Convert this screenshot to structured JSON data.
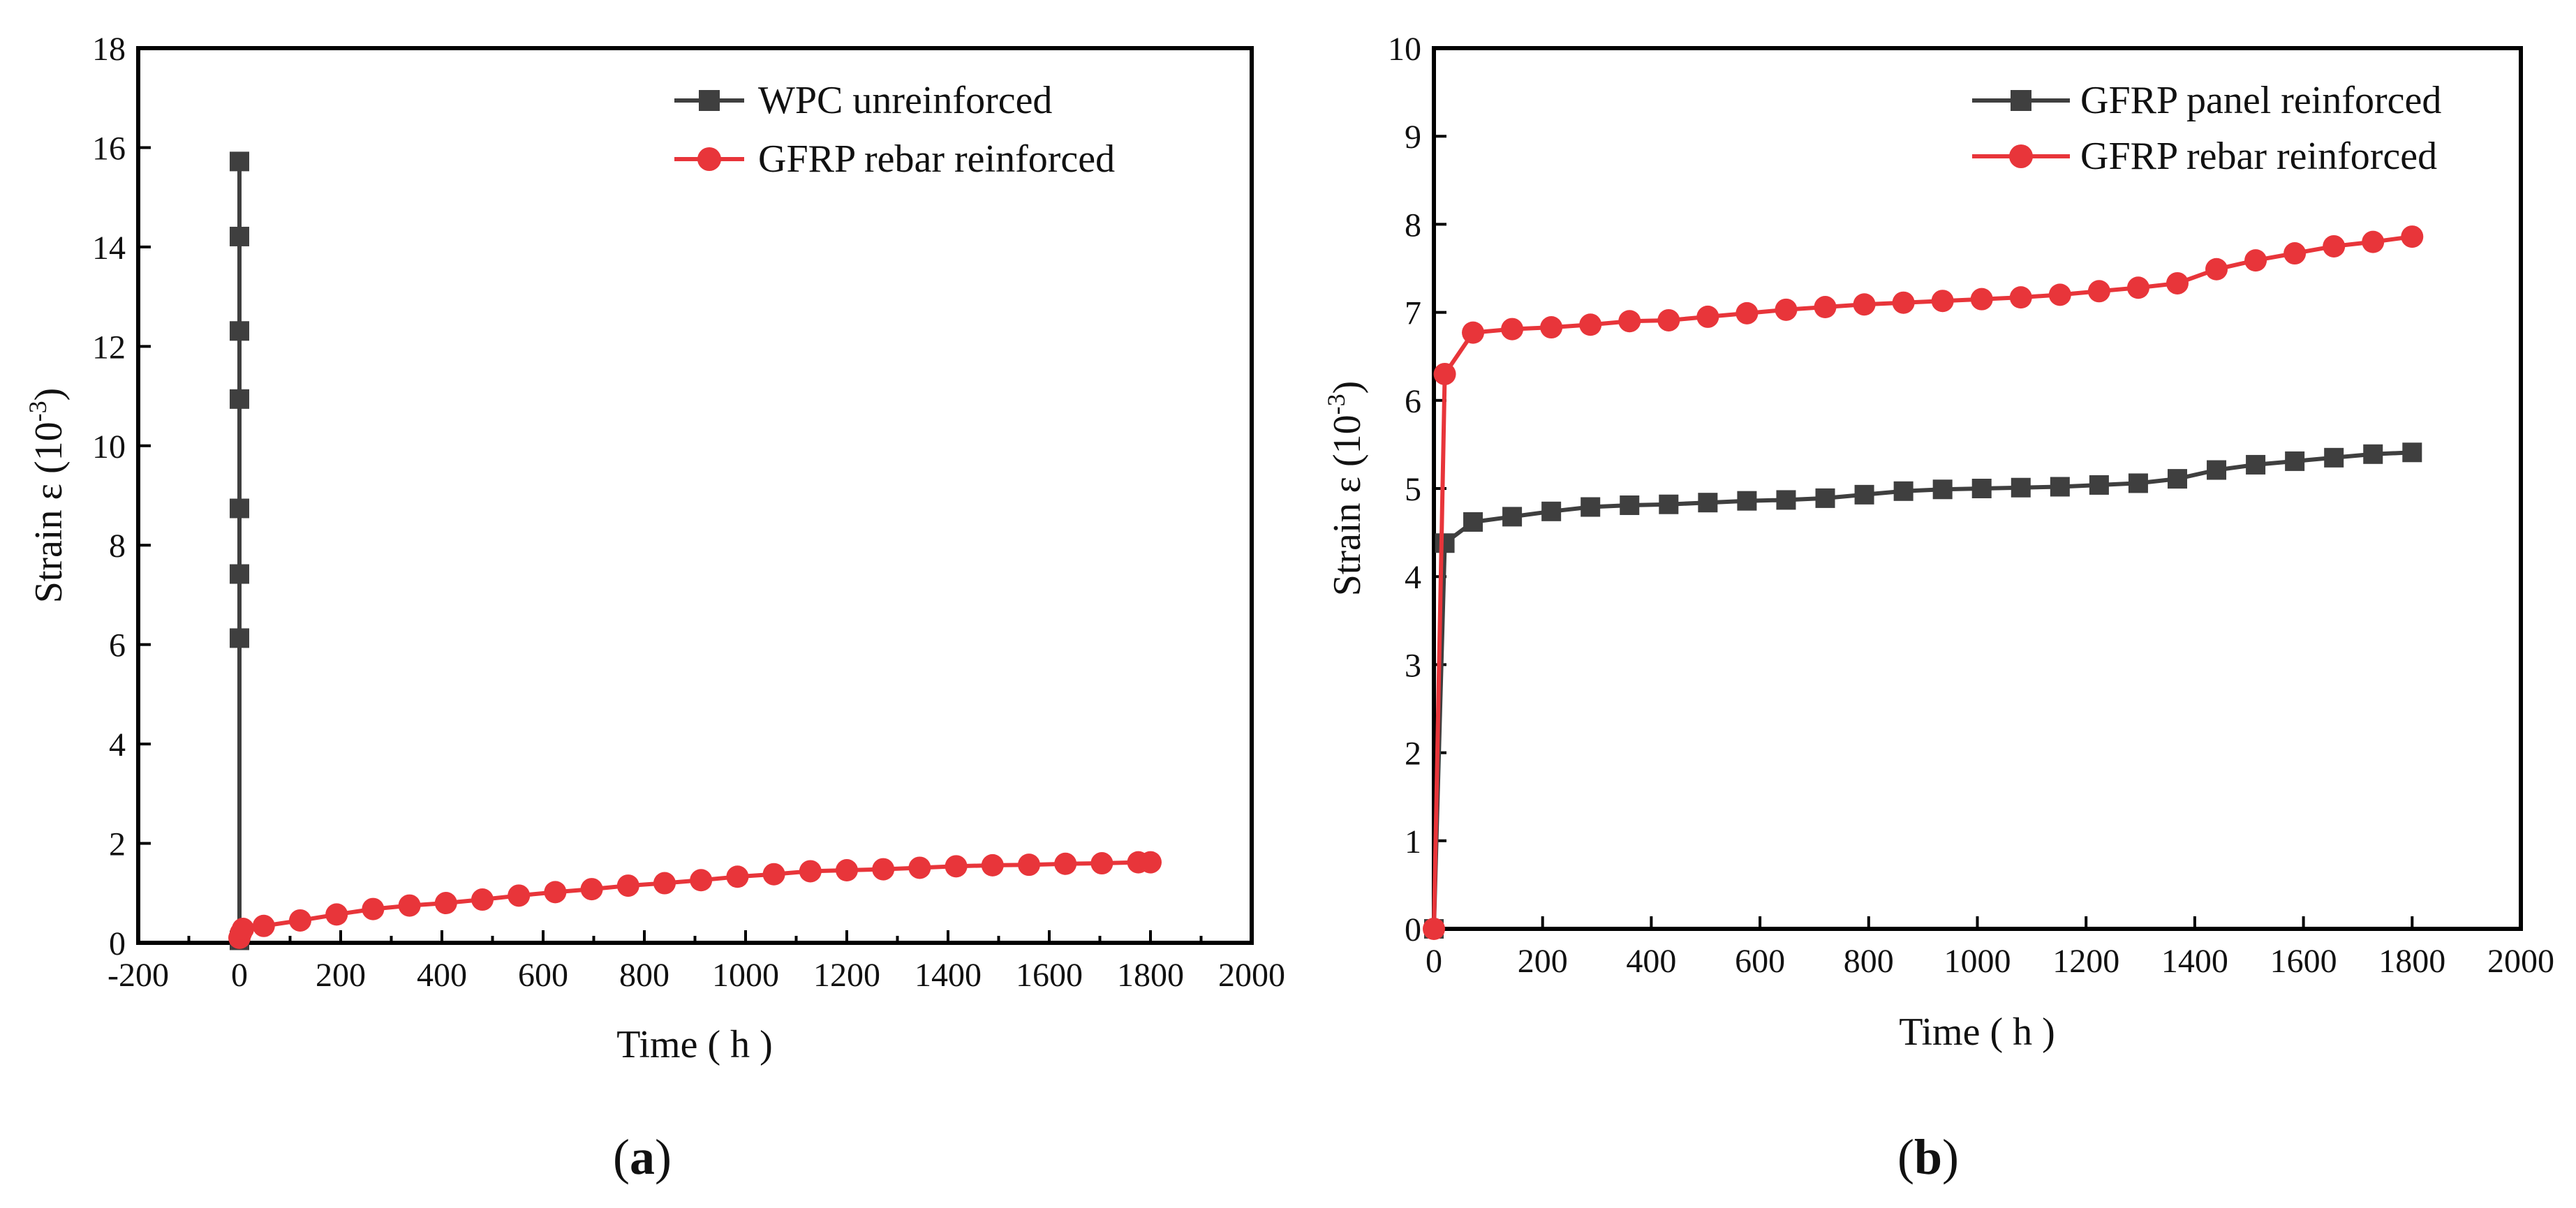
{
  "chart_data": [
    {
      "type": "line",
      "panel_label": "a",
      "xlabel": "Time ( h )",
      "ylabel_main": "Strain ε (10",
      "ylabel_exp": "-3",
      "ylabel_close": ")",
      "xlim": [
        -200,
        2000
      ],
      "ylim": [
        0,
        18
      ],
      "x_ticks": [
        -200,
        0,
        200,
        400,
        600,
        800,
        1000,
        1200,
        1400,
        1600,
        1800,
        2000
      ],
      "y_ticks": [
        0,
        2,
        4,
        6,
        8,
        10,
        12,
        14,
        16,
        18
      ],
      "legend_position": "top-right",
      "series": [
        {
          "name": "WPC unreinforced",
          "color": "#3f3f3f",
          "marker": "square",
          "x": [
            0,
            0,
            0,
            0,
            0,
            0,
            0,
            0
          ],
          "y": [
            0.05,
            6.13,
            7.42,
            8.74,
            10.94,
            12.31,
            14.21,
            15.72
          ]
        },
        {
          "name": "GFRP rebar reinforced",
          "color": "#e8353a",
          "marker": "circle",
          "x": [
            0,
            3,
            7,
            48,
            120,
            192,
            264,
            336,
            408,
            480,
            552,
            624,
            696,
            768,
            840,
            912,
            984,
            1056,
            1128,
            1200,
            1272,
            1344,
            1416,
            1488,
            1560,
            1632,
            1704,
            1776,
            1800
          ],
          "y": [
            0.1,
            0.2,
            0.28,
            0.34,
            0.45,
            0.57,
            0.68,
            0.75,
            0.8,
            0.87,
            0.95,
            1.02,
            1.08,
            1.15,
            1.2,
            1.26,
            1.33,
            1.38,
            1.44,
            1.46,
            1.48,
            1.51,
            1.54,
            1.56,
            1.57,
            1.59,
            1.6,
            1.62,
            1.62
          ]
        }
      ]
    },
    {
      "type": "line",
      "panel_label": "b",
      "xlabel": "Time ( h )",
      "ylabel_main": "Strain ε (10",
      "ylabel_exp": "-3",
      "ylabel_close": ")",
      "xlim": [
        0,
        2000
      ],
      "ylim": [
        0,
        10
      ],
      "x_ticks": [
        0,
        200,
        400,
        600,
        800,
        1000,
        1200,
        1400,
        1600,
        1800,
        2000
      ],
      "y_ticks": [
        0,
        1,
        2,
        3,
        4,
        5,
        6,
        7,
        8,
        9,
        10
      ],
      "legend_position": "top-right",
      "series": [
        {
          "name": "GFRP panel reinforced",
          "color": "#3f3f3f",
          "marker": "square",
          "x": [
            0,
            20,
            72,
            144,
            216,
            288,
            360,
            432,
            504,
            576,
            648,
            720,
            792,
            864,
            936,
            1008,
            1080,
            1152,
            1224,
            1296,
            1368,
            1440,
            1512,
            1584,
            1656,
            1728,
            1800
          ],
          "y": [
            0.0,
            4.38,
            4.62,
            4.68,
            4.74,
            4.79,
            4.81,
            4.82,
            4.84,
            4.86,
            4.87,
            4.89,
            4.93,
            4.97,
            4.99,
            5.0,
            5.01,
            5.02,
            5.04,
            5.06,
            5.11,
            5.21,
            5.27,
            5.31,
            5.35,
            5.39,
            5.41
          ]
        },
        {
          "name": "GFRP rebar reinforced",
          "color": "#e8353a",
          "marker": "circle",
          "x": [
            0,
            20,
            72,
            144,
            216,
            288,
            360,
            432,
            504,
            576,
            648,
            720,
            792,
            864,
            936,
            1008,
            1080,
            1152,
            1224,
            1296,
            1368,
            1440,
            1512,
            1584,
            1656,
            1728,
            1800
          ],
          "y": [
            0.0,
            6.3,
            6.77,
            6.81,
            6.83,
            6.86,
            6.9,
            6.91,
            6.95,
            6.99,
            7.03,
            7.06,
            7.09,
            7.11,
            7.13,
            7.15,
            7.17,
            7.2,
            7.24,
            7.28,
            7.33,
            7.49,
            7.59,
            7.67,
            7.75,
            7.8,
            7.86
          ]
        }
      ]
    }
  ]
}
